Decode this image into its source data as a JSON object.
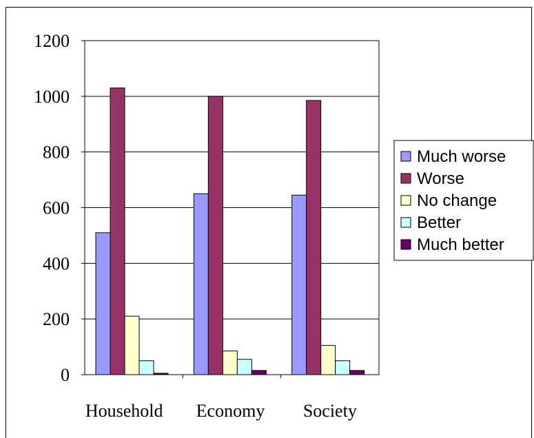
{
  "chart_data": {
    "type": "bar",
    "categories": [
      "Household",
      "Economy",
      "Society"
    ],
    "series": [
      {
        "name": "Much worse",
        "color": "#9999FF",
        "values": [
          510,
          650,
          645
        ]
      },
      {
        "name": "Worse",
        "color": "#993366",
        "values": [
          1030,
          1000,
          985
        ]
      },
      {
        "name": "No change",
        "color": "#FFFFCC",
        "values": [
          210,
          85,
          105
        ]
      },
      {
        "name": "Better",
        "color": "#CCFFFF",
        "values": [
          50,
          55,
          50
        ]
      },
      {
        "name": "Much better",
        "color": "#660066",
        "values": [
          5,
          15,
          15
        ]
      }
    ],
    "ylim": [
      0,
      1200
    ],
    "yticks": [
      0,
      200,
      400,
      600,
      800,
      1000,
      1200
    ],
    "title": "",
    "xlabel": "",
    "ylabel": "",
    "grid": true,
    "legend_position": "right"
  }
}
